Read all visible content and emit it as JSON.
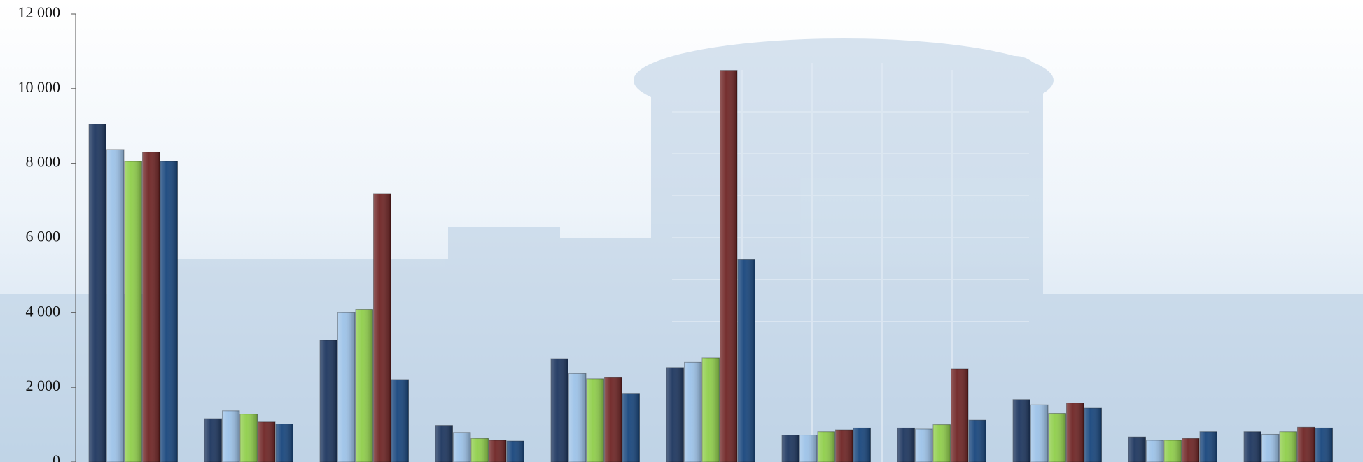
{
  "chart_data": {
    "type": "bar",
    "categories": [
      null,
      null,
      null,
      null,
      null,
      null,
      null,
      null,
      null,
      null,
      null
    ],
    "series": [
      {
        "color": "#1c355e",
        "values": [
          9050,
          1160,
          3260,
          980,
          2770,
          2530,
          720,
          910,
          1670,
          670,
          810
        ]
      },
      {
        "color": "#9cc2e8",
        "values": [
          8370,
          1370,
          4000,
          790,
          2370,
          2670,
          720,
          880,
          1530,
          580,
          740
        ]
      },
      {
        "color": "#8fce4a",
        "values": [
          8050,
          1280,
          4090,
          630,
          2230,
          2790,
          810,
          1000,
          1300,
          580,
          810
        ]
      },
      {
        "color": "#6e2424",
        "values": [
          8300,
          1070,
          7190,
          580,
          2260,
          10490,
          860,
          2490,
          1580,
          630,
          930
        ]
      },
      {
        "color": "#17457c",
        "values": [
          8050,
          1020,
          2210,
          560,
          1840,
          5420,
          910,
          1120,
          1440,
          810,
          910
        ]
      }
    ],
    "ylim": [
      0,
      12000
    ],
    "yticks": [
      {
        "value": 0,
        "label": "0"
      },
      {
        "value": 2000,
        "label": "2 000"
      },
      {
        "value": 4000,
        "label": "4 000"
      },
      {
        "value": 6000,
        "label": "6 000"
      },
      {
        "value": 8000,
        "label": "8 000"
      },
      {
        "value": 10000,
        "label": "10 000"
      },
      {
        "value": 12000,
        "label": "12 000"
      }
    ]
  }
}
